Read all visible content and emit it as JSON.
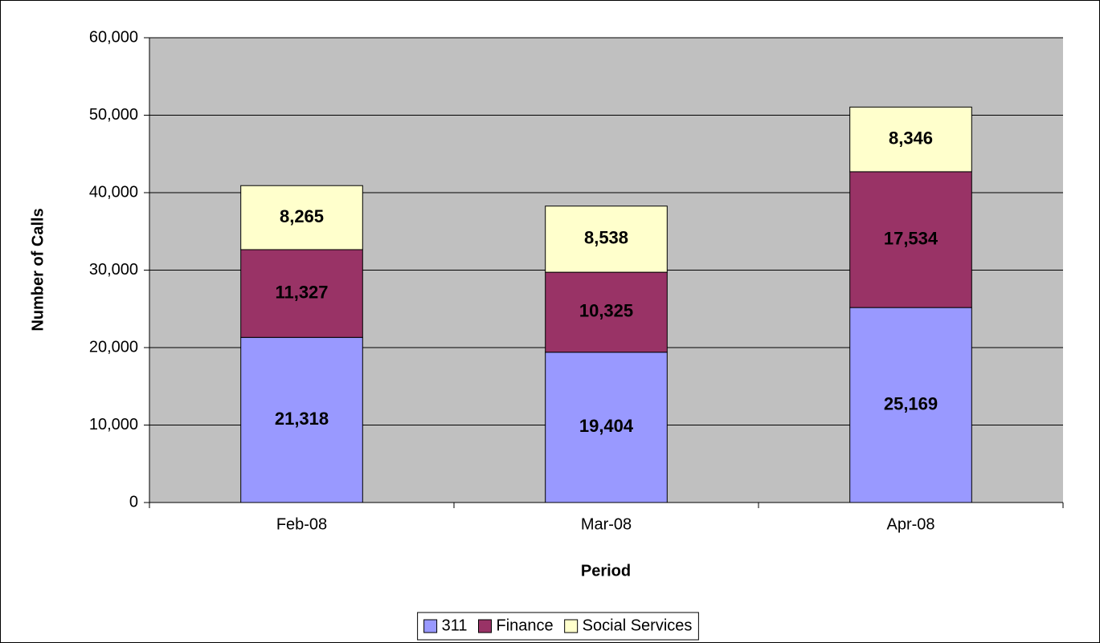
{
  "chart_data": {
    "type": "stacked-bar",
    "x_label": "Period",
    "y_label": "Number of Calls",
    "categories": [
      "Feb-08",
      "Mar-08",
      "Apr-08"
    ],
    "series": [
      {
        "name": "311",
        "color": "#9999ff",
        "values": [
          21318,
          19404,
          25169
        ],
        "value_labels": [
          "21,318",
          "19,404",
          "25,169"
        ]
      },
      {
        "name": "Finance",
        "color": "#993366",
        "values": [
          11327,
          10325,
          17534
        ],
        "value_labels": [
          "11,327",
          "10,325",
          "17,534"
        ]
      },
      {
        "name": "Social Services",
        "color": "#ffffcc",
        "values": [
          8265,
          8538,
          8346
        ],
        "value_labels": [
          "8,265",
          "8,538",
          "8,346"
        ]
      }
    ],
    "ylim": [
      0,
      60000
    ],
    "yticks": [
      0,
      {
        "value": 10000,
        "label": "10,000"
      },
      {
        "value": 20000,
        "label": "20,000"
      },
      {
        "value": 30000,
        "label": "30,000"
      },
      {
        "value": 40000,
        "label": "40,000"
      },
      {
        "value": 50000,
        "label": "50,000"
      },
      {
        "value": 60000,
        "label": "60,000"
      }
    ],
    "grid": true,
    "plot_background": "#c0c0c0",
    "legend": "bottom"
  }
}
